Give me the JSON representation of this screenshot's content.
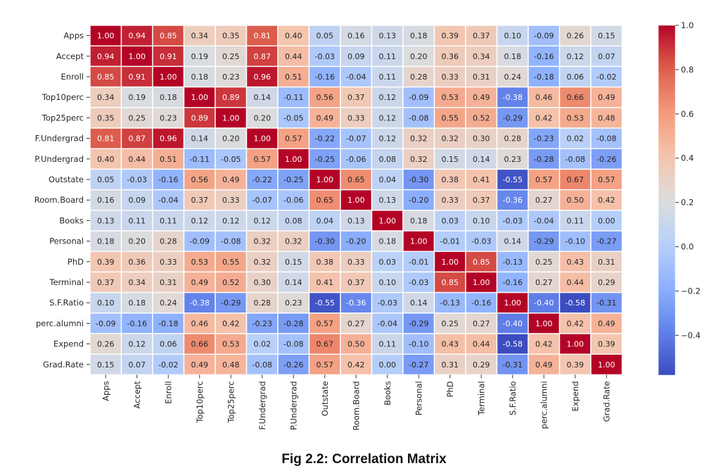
{
  "caption": "Fig 2.2: Correlation Matrix",
  "chart_data": {
    "type": "heatmap",
    "title": "",
    "xlabel": "",
    "ylabel": "",
    "labels": [
      "Apps",
      "Accept",
      "Enroll",
      "Top10perc",
      "Top25perc",
      "F.Undergrad",
      "P.Undergrad",
      "Outstate",
      "Room.Board",
      "Books",
      "Personal",
      "PhD",
      "Terminal",
      "S.F.Ratio",
      "perc.alumni",
      "Expend",
      "Grad.Rate"
    ],
    "values": [
      [
        1.0,
        0.94,
        0.85,
        0.34,
        0.35,
        0.81,
        0.4,
        0.05,
        0.16,
        0.13,
        0.18,
        0.39,
        0.37,
        0.1,
        -0.09,
        0.26,
        0.15
      ],
      [
        0.94,
        1.0,
        0.91,
        0.19,
        0.25,
        0.87,
        0.44,
        -0.03,
        0.09,
        0.11,
        0.2,
        0.36,
        0.34,
        0.18,
        -0.16,
        0.12,
        0.07
      ],
      [
        0.85,
        0.91,
        1.0,
        0.18,
        0.23,
        0.96,
        0.51,
        -0.16,
        -0.04,
        0.11,
        0.28,
        0.33,
        0.31,
        0.24,
        -0.18,
        0.06,
        -0.02
      ],
      [
        0.34,
        0.19,
        0.18,
        1.0,
        0.89,
        0.14,
        -0.11,
        0.56,
        0.37,
        0.12,
        -0.09,
        0.53,
        0.49,
        -0.38,
        0.46,
        0.66,
        0.49
      ],
      [
        0.35,
        0.25,
        0.23,
        0.89,
        1.0,
        0.2,
        -0.05,
        0.49,
        0.33,
        0.12,
        -0.08,
        0.55,
        0.52,
        -0.29,
        0.42,
        0.53,
        0.48
      ],
      [
        0.81,
        0.87,
        0.96,
        0.14,
        0.2,
        1.0,
        0.57,
        -0.22,
        -0.07,
        0.12,
        0.32,
        0.32,
        0.3,
        0.28,
        -0.23,
        0.02,
        -0.08
      ],
      [
        0.4,
        0.44,
        0.51,
        -0.11,
        -0.05,
        0.57,
        1.0,
        -0.25,
        -0.06,
        0.08,
        0.32,
        0.15,
        0.14,
        0.23,
        -0.28,
        -0.08,
        -0.26
      ],
      [
        0.05,
        -0.03,
        -0.16,
        0.56,
        0.49,
        -0.22,
        -0.25,
        1.0,
        0.65,
        0.04,
        -0.3,
        0.38,
        0.41,
        -0.55,
        0.57,
        0.67,
        0.57
      ],
      [
        0.16,
        0.09,
        -0.04,
        0.37,
        0.33,
        -0.07,
        -0.06,
        0.65,
        1.0,
        0.13,
        -0.2,
        0.33,
        0.37,
        -0.36,
        0.27,
        0.5,
        0.42
      ],
      [
        0.13,
        0.11,
        0.11,
        0.12,
        0.12,
        0.12,
        0.08,
        0.04,
        0.13,
        1.0,
        0.18,
        0.03,
        0.1,
        -0.03,
        -0.04,
        0.11,
        0.0
      ],
      [
        0.18,
        0.2,
        0.28,
        -0.09,
        -0.08,
        0.32,
        0.32,
        -0.3,
        -0.2,
        0.18,
        1.0,
        -0.01,
        -0.03,
        0.14,
        -0.29,
        -0.1,
        -0.27
      ],
      [
        0.39,
        0.36,
        0.33,
        0.53,
        0.55,
        0.32,
        0.15,
        0.38,
        0.33,
        0.03,
        -0.01,
        1.0,
        0.85,
        -0.13,
        0.25,
        0.43,
        0.31
      ],
      [
        0.37,
        0.34,
        0.31,
        0.49,
        0.52,
        0.3,
        0.14,
        0.41,
        0.37,
        0.1,
        -0.03,
        0.85,
        1.0,
        -0.16,
        0.27,
        0.44,
        0.29
      ],
      [
        0.1,
        0.18,
        0.24,
        -0.38,
        -0.29,
        0.28,
        0.23,
        -0.55,
        -0.36,
        -0.03,
        0.14,
        -0.13,
        -0.16,
        1.0,
        -0.4,
        -0.58,
        -0.31
      ],
      [
        -0.09,
        -0.16,
        -0.18,
        0.46,
        0.42,
        -0.23,
        -0.28,
        0.57,
        0.27,
        -0.04,
        -0.29,
        0.25,
        0.27,
        -0.4,
        1.0,
        0.42,
        0.49
      ],
      [
        0.26,
        0.12,
        0.06,
        0.66,
        0.53,
        0.02,
        -0.08,
        0.67,
        0.5,
        0.11,
        -0.1,
        0.43,
        0.44,
        -0.58,
        0.42,
        1.0,
        0.39
      ],
      [
        0.15,
        0.07,
        -0.02,
        0.49,
        0.48,
        -0.08,
        -0.26,
        0.57,
        0.42,
        0.0,
        -0.27,
        0.31,
        0.29,
        -0.31,
        0.49,
        0.39,
        1.0
      ]
    ],
    "colormap": "coolwarm",
    "vmin": -0.58,
    "vmax": 1.0,
    "colorbar_ticks": [
      1.0,
      0.8,
      0.6,
      0.4,
      0.2,
      0.0,
      -0.2,
      -0.4
    ],
    "colorbar_tick_labels": [
      "1.0",
      "0.8",
      "0.6",
      "0.4",
      "0.2",
      "0.0",
      "−0.2",
      "−0.4"
    ],
    "annotations": true,
    "cell_grid_color": "#ffffff",
    "legend": "colorbar-right"
  }
}
